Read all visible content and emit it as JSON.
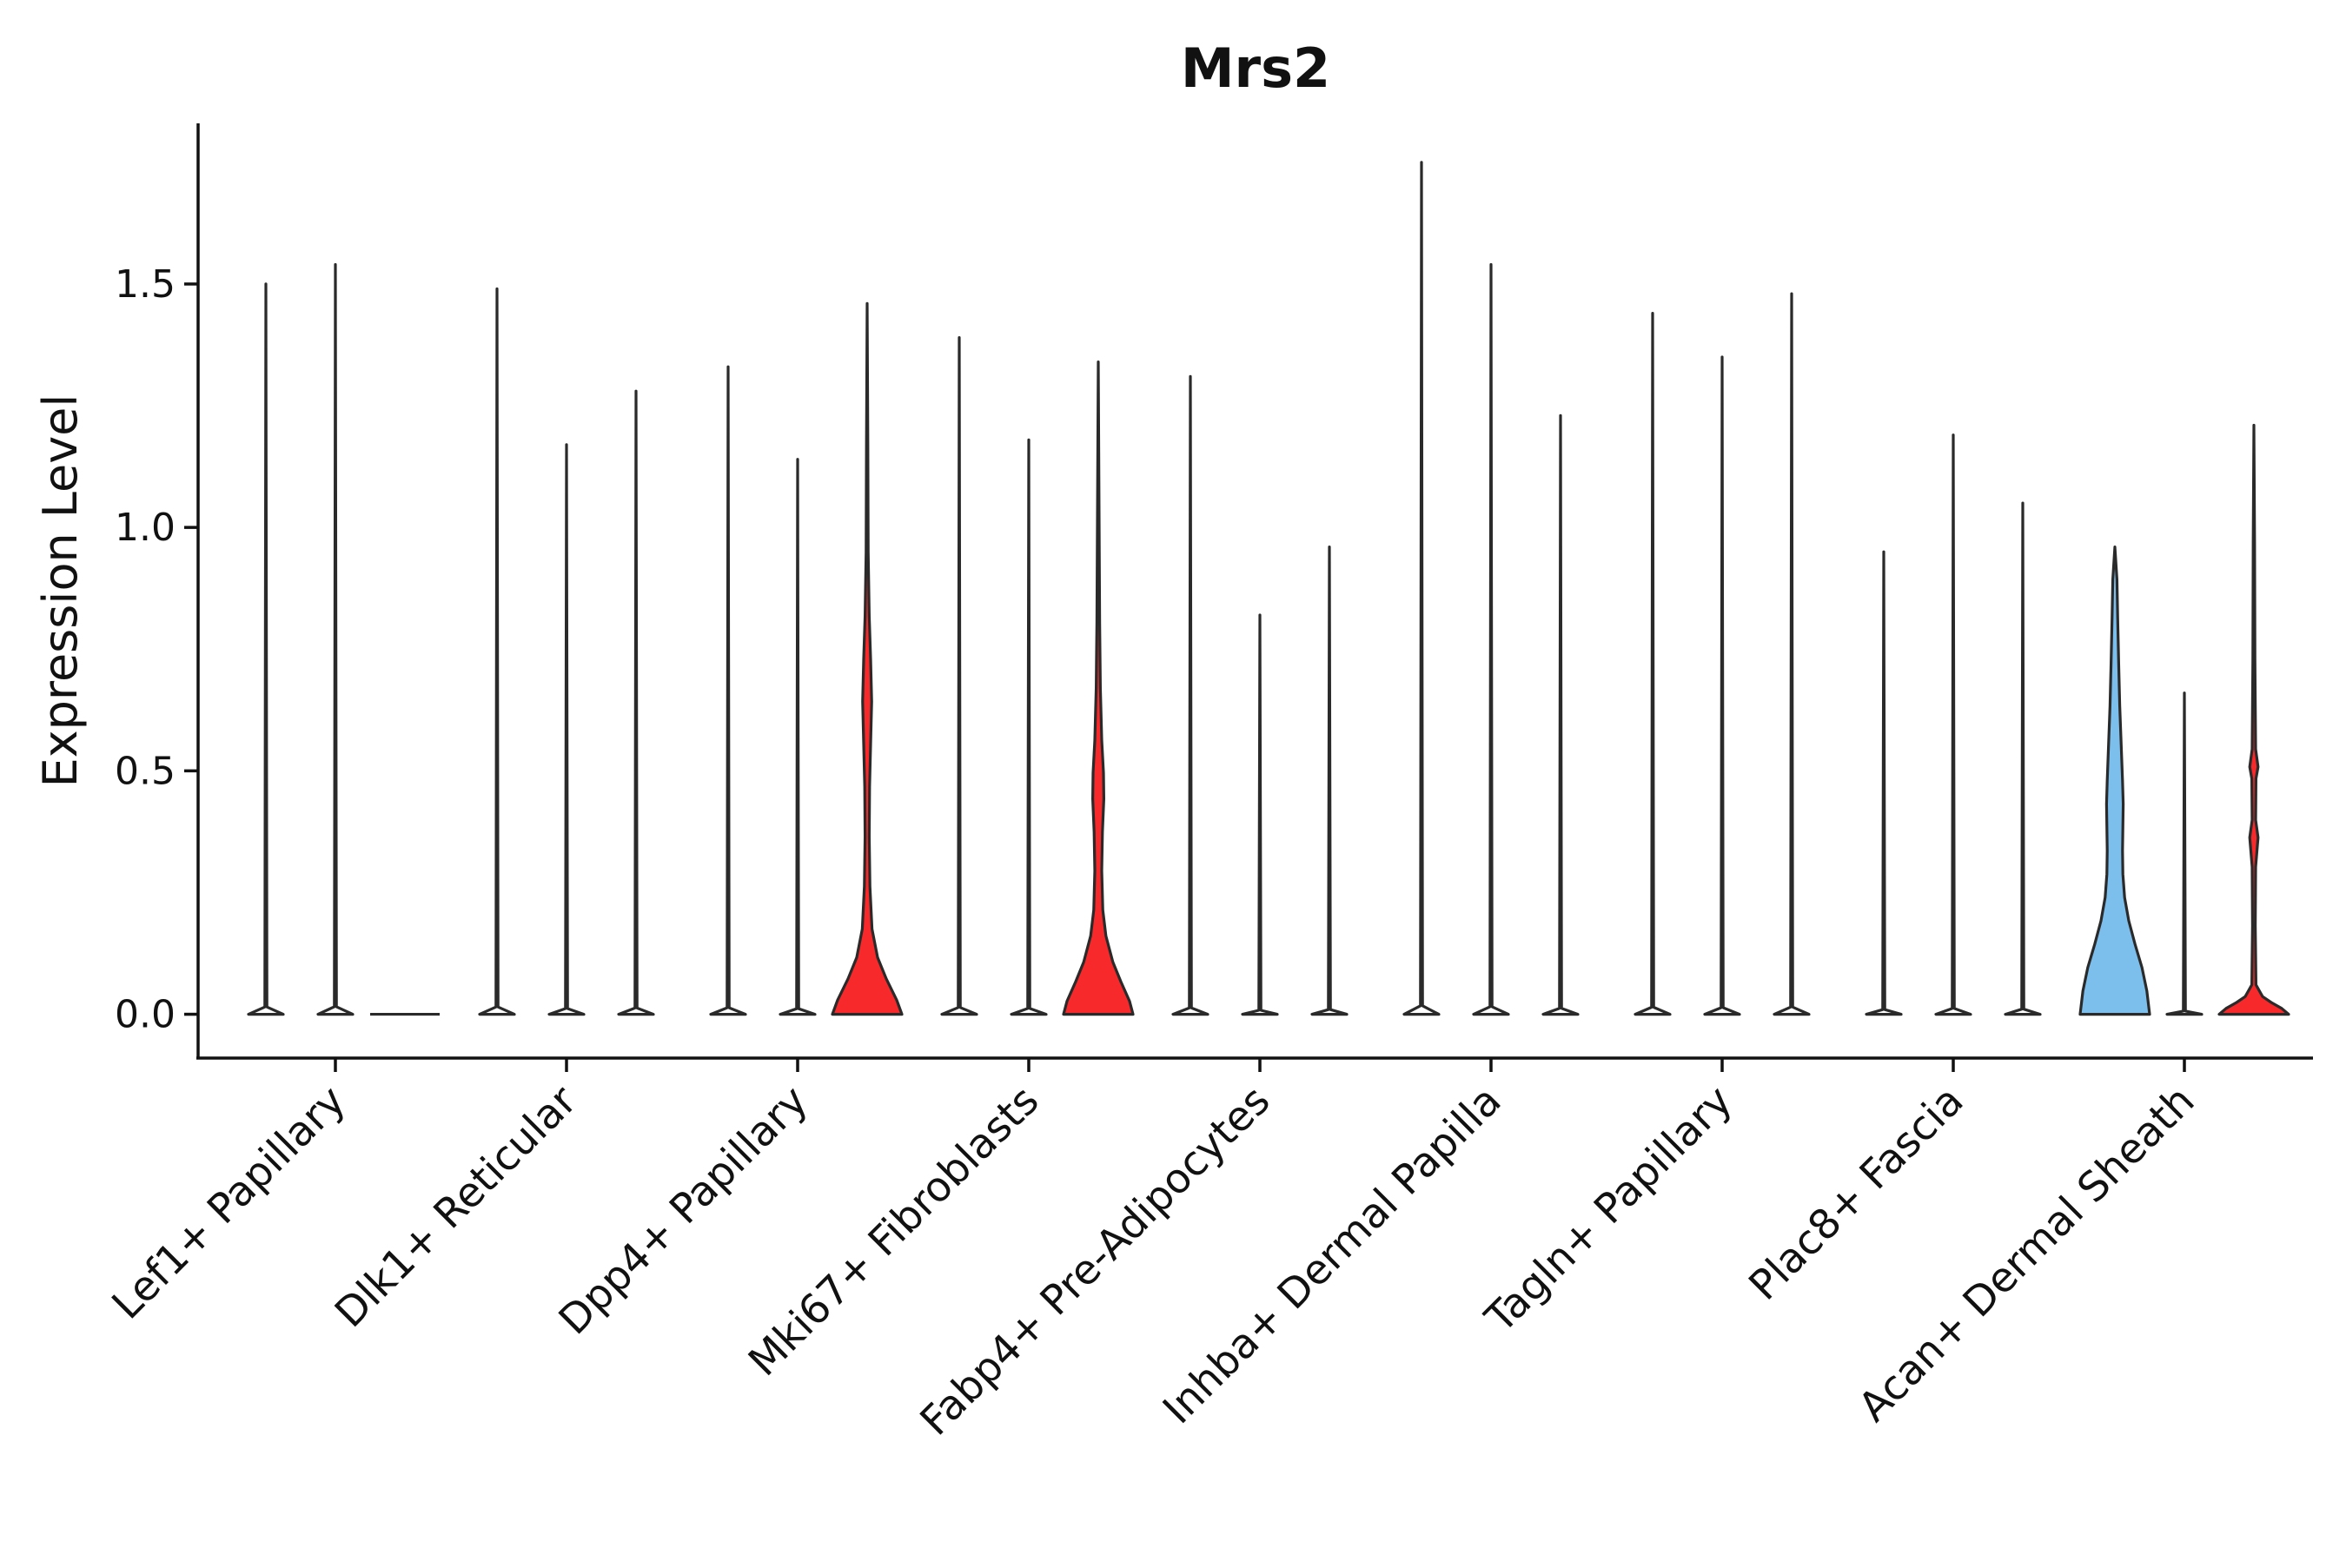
{
  "chart_data": {
    "type": "violin",
    "title": "Mrs2",
    "xlabel": "",
    "ylabel": "Expression Level",
    "ylim": [
      -0.09,
      1.83
    ],
    "yticks": [
      0.0,
      0.5,
      1.0,
      1.5
    ],
    "ytick_labels": [
      "0.0",
      "0.5",
      "1.0",
      "1.5"
    ],
    "grid": false,
    "categories": [
      "Lef1+ Papillary",
      "Dlk1+ Reticular",
      "Dpp4+ Papillary",
      "Mki67+ Fibroblasts",
      "Fabp4+ Pre-Adipocytes",
      "Inhba+ Dermal Papilla",
      "Tagln+ Papillary",
      "Plac8+ Fascia",
      "Acan+ Dermal Sheath"
    ],
    "colors": {
      "none": "#ffffff",
      "red": "#f8292a",
      "blue": "#7dbfec",
      "outline": "#2a2a2a",
      "axis": "#111111"
    },
    "groups": [
      {
        "category": "Lef1+ Papillary",
        "violins": [
          {
            "max": 1.5,
            "fill": "none",
            "profile": [
              [
                0,
                0.5
              ],
              [
                0.01,
                0.03
              ]
            ]
          },
          {
            "max": 1.54,
            "fill": "none",
            "profile": [
              [
                0,
                0.5
              ],
              [
                0.01,
                0.03
              ]
            ]
          },
          {
            "max": 0.0,
            "fill": "none",
            "profile": [
              [
                0,
                0.5
              ]
            ]
          }
        ]
      },
      {
        "category": "Dlk1+ Reticular",
        "violins": [
          {
            "max": 1.49,
            "fill": "none",
            "profile": [
              [
                0,
                0.5
              ],
              [
                0.01,
                0.03
              ]
            ]
          },
          {
            "max": 1.17,
            "fill": "none",
            "profile": [
              [
                0,
                0.5
              ],
              [
                0.01,
                0.03
              ]
            ]
          },
          {
            "max": 1.28,
            "fill": "none",
            "profile": [
              [
                0,
                0.5
              ],
              [
                0.01,
                0.03
              ]
            ]
          }
        ]
      },
      {
        "category": "Dpp4+ Papillary",
        "violins": [
          {
            "max": 1.33,
            "fill": "none",
            "profile": [
              [
                0,
                0.5
              ],
              [
                0.01,
                0.03
              ]
            ]
          },
          {
            "max": 1.14,
            "fill": "none",
            "profile": [
              [
                0,
                0.5
              ],
              [
                0.01,
                0.03
              ]
            ]
          },
          {
            "max": 1.46,
            "fill": "red",
            "profile": [
              [
                0,
                1.0
              ],
              [
                0.02,
                0.85
              ],
              [
                0.05,
                0.55
              ],
              [
                0.08,
                0.3
              ],
              [
                0.12,
                0.14
              ],
              [
                0.18,
                0.08
              ],
              [
                0.25,
                0.06
              ],
              [
                0.32,
                0.07
              ],
              [
                0.38,
                0.1
              ],
              [
                0.44,
                0.13
              ],
              [
                0.5,
                0.1
              ],
              [
                0.56,
                0.06
              ],
              [
                0.65,
                0.03
              ],
              [
                0.8,
                0.02
              ]
            ]
          }
        ]
      },
      {
        "category": "Mki67+ Fibroblasts",
        "violins": [
          {
            "max": 1.39,
            "fill": "none",
            "profile": [
              [
                0,
                0.5
              ],
              [
                0.01,
                0.03
              ]
            ]
          },
          {
            "max": 1.18,
            "fill": "none",
            "profile": [
              [
                0,
                0.5
              ],
              [
                0.01,
                0.03
              ]
            ]
          },
          {
            "max": 1.34,
            "fill": "red",
            "profile": [
              [
                0,
                1.0
              ],
              [
                0.02,
                0.9
              ],
              [
                0.05,
                0.65
              ],
              [
                0.08,
                0.42
              ],
              [
                0.12,
                0.22
              ],
              [
                0.16,
                0.13
              ],
              [
                0.22,
                0.1
              ],
              [
                0.28,
                0.12
              ],
              [
                0.33,
                0.16
              ],
              [
                0.37,
                0.15
              ],
              [
                0.42,
                0.1
              ],
              [
                0.5,
                0.06
              ],
              [
                0.6,
                0.04
              ],
              [
                0.8,
                0.02
              ]
            ]
          }
        ]
      },
      {
        "category": "Fabp4+ Pre-Adipocytes",
        "violins": [
          {
            "max": 1.31,
            "fill": "none",
            "profile": [
              [
                0,
                0.5
              ],
              [
                0.01,
                0.03
              ]
            ]
          },
          {
            "max": 0.82,
            "fill": "none",
            "profile": [
              [
                0,
                0.5
              ],
              [
                0.01,
                0.03
              ]
            ]
          },
          {
            "max": 0.96,
            "fill": "none",
            "profile": [
              [
                0,
                0.5
              ],
              [
                0.01,
                0.03
              ]
            ]
          }
        ]
      },
      {
        "category": "Inhba+ Dermal Papilla",
        "violins": [
          {
            "max": 1.75,
            "fill": "none",
            "profile": [
              [
                0,
                0.5
              ],
              [
                0.01,
                0.03
              ]
            ]
          },
          {
            "max": 1.54,
            "fill": "none",
            "profile": [
              [
                0,
                0.5
              ],
              [
                0.01,
                0.03
              ]
            ]
          },
          {
            "max": 1.23,
            "fill": "none",
            "profile": [
              [
                0,
                0.5
              ],
              [
                0.01,
                0.03
              ]
            ]
          }
        ]
      },
      {
        "category": "Tagln+ Papillary",
        "violins": [
          {
            "max": 1.44,
            "fill": "none",
            "profile": [
              [
                0,
                0.5
              ],
              [
                0.01,
                0.03
              ]
            ]
          },
          {
            "max": 1.35,
            "fill": "none",
            "profile": [
              [
                0,
                0.5
              ],
              [
                0.01,
                0.03
              ]
            ]
          },
          {
            "max": 1.48,
            "fill": "none",
            "profile": [
              [
                0,
                0.5
              ],
              [
                0.01,
                0.03
              ]
            ]
          }
        ]
      },
      {
        "category": "Plac8+ Fascia",
        "violins": [
          {
            "max": 0.95,
            "fill": "none",
            "profile": [
              [
                0,
                0.5
              ],
              [
                0.01,
                0.03
              ]
            ]
          },
          {
            "max": 1.19,
            "fill": "none",
            "profile": [
              [
                0,
                0.5
              ],
              [
                0.01,
                0.03
              ]
            ]
          },
          {
            "max": 1.05,
            "fill": "none",
            "profile": [
              [
                0,
                0.5
              ],
              [
                0.01,
                0.03
              ]
            ]
          }
        ]
      },
      {
        "category": "Acan+ Dermal Sheath",
        "violins": [
          {
            "max": 0.96,
            "fill": "blue",
            "profile": [
              [
                0,
                1.0
              ],
              [
                0.05,
                0.92
              ],
              [
                0.1,
                0.78
              ],
              [
                0.15,
                0.58
              ],
              [
                0.2,
                0.4
              ],
              [
                0.25,
                0.28
              ],
              [
                0.3,
                0.23
              ],
              [
                0.35,
                0.22
              ],
              [
                0.4,
                0.23
              ],
              [
                0.45,
                0.24
              ],
              [
                0.5,
                0.22
              ],
              [
                0.58,
                0.18
              ],
              [
                0.66,
                0.14
              ],
              [
                0.75,
                0.11
              ],
              [
                0.85,
                0.08
              ],
              [
                0.93,
                0.06
              ]
            ]
          },
          {
            "max": 0.66,
            "fill": "none",
            "profile": [
              [
                0,
                0.5
              ],
              [
                0.01,
                0.03
              ]
            ]
          },
          {
            "max": 1.21,
            "fill": "red",
            "profile": [
              [
                0,
                1.0
              ],
              [
                0.01,
                0.8
              ],
              [
                0.02,
                0.5
              ],
              [
                0.03,
                0.25
              ],
              [
                0.05,
                0.06
              ],
              [
                0.15,
                0.04
              ],
              [
                0.25,
                0.05
              ],
              [
                0.3,
                0.12
              ],
              [
                0.33,
                0.05
              ],
              [
                0.4,
                0.06
              ],
              [
                0.42,
                0.12
              ],
              [
                0.45,
                0.05
              ],
              [
                0.6,
                0.03
              ],
              [
                0.8,
                0.02
              ]
            ]
          }
        ]
      }
    ]
  }
}
